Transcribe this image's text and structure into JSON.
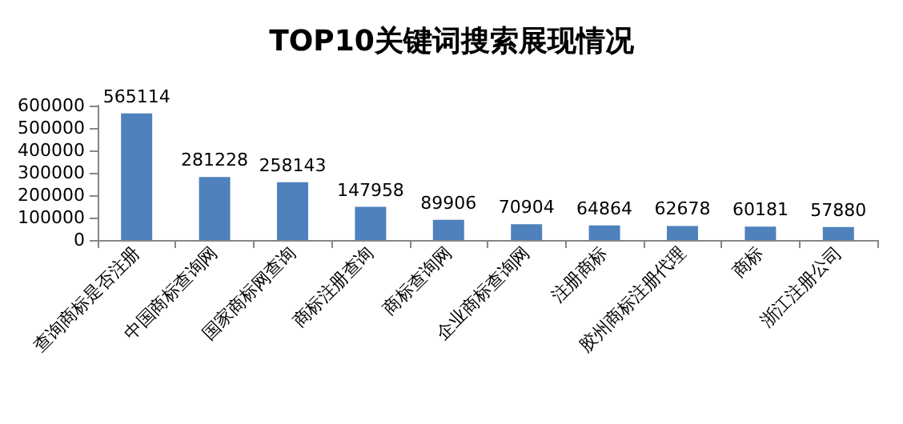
{
  "chart_data": {
    "type": "bar",
    "title": "TOP10关键词搜索展现情况",
    "categories": [
      "查询商标是否注册",
      "中国商标查询网",
      "国家商标网查询",
      "商标注册查询",
      "商标查询网",
      "企业商标查询网",
      "注册商标",
      "胶州商标注册代理",
      "商标",
      "浙江注册公司"
    ],
    "values": [
      565114,
      281228,
      258143,
      147958,
      89906,
      70904,
      64864,
      62678,
      60181,
      57880
    ],
    "color": "#4f81bd",
    "ylim": [
      0,
      600000
    ],
    "yticks": [
      0,
      100000,
      200000,
      300000,
      400000,
      500000,
      600000
    ],
    "data_labels": true,
    "grid": false
  }
}
